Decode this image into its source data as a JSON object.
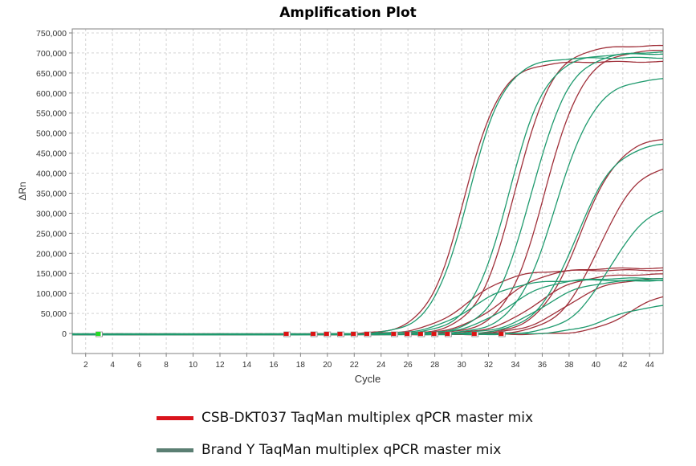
{
  "chart_data": {
    "type": "line",
    "title": "Amplification Plot",
    "xlabel": "Cycle",
    "ylabel": "ΔRn",
    "xlim": [
      1,
      45
    ],
    "ylim": [
      -50000,
      760000
    ],
    "xticks": [
      2,
      4,
      6,
      8,
      10,
      12,
      14,
      16,
      18,
      20,
      22,
      24,
      26,
      28,
      30,
      32,
      34,
      36,
      38,
      40,
      42,
      44
    ],
    "yticks": [
      0,
      50000,
      100000,
      150000,
      200000,
      250000,
      300000,
      350000,
      400000,
      450000,
      500000,
      550000,
      600000,
      650000,
      700000,
      750000
    ],
    "ytick_labels": [
      "0",
      "50,000",
      "100,000",
      "150,000",
      "200,000",
      "250,000",
      "300,000",
      "350,000",
      "400,000",
      "450,000",
      "500,000",
      "550,000",
      "600,000",
      "650,000",
      "700,000",
      "750,000"
    ],
    "grid": true,
    "colors": {
      "red": "#a0303a",
      "green": "#1f9a6e",
      "legend_red": "#d9141c",
      "legend_green": "#5b7f73"
    },
    "legend": [
      {
        "label": "CSB-DKT037 TaqMan multiplex qPCR master mix",
        "color": "#d9141c"
      },
      {
        "label": "Brand Y TaqMan multiplex qPCR master mix",
        "color": "#5b7f73"
      }
    ],
    "series_curves": [
      {
        "group": "red",
        "plateau": 680000,
        "midpoint": 30.2,
        "slope": 1.35
      },
      {
        "group": "red",
        "plateau": 720000,
        "midpoint": 34.0,
        "slope": 1.4
      },
      {
        "group": "red",
        "plateau": 710000,
        "midpoint": 36.2,
        "slope": 1.45
      },
      {
        "group": "red",
        "plateau": 495000,
        "midpoint": 38.8,
        "slope": 1.5
      },
      {
        "group": "red",
        "plateau": 430000,
        "midpoint": 40.2,
        "slope": 1.5
      },
      {
        "group": "red",
        "plateau": 160000,
        "midpoint": 30.5,
        "slope": 1.6
      },
      {
        "group": "red",
        "plateau": 165000,
        "midpoint": 33.0,
        "slope": 1.6
      },
      {
        "group": "red",
        "plateau": 150000,
        "midpoint": 35.5,
        "slope": 1.6
      },
      {
        "group": "red",
        "plateau": 140000,
        "midpoint": 37.8,
        "slope": 1.6
      },
      {
        "group": "red",
        "plateau": 110000,
        "midpoint": 42.5,
        "slope": 1.4
      },
      {
        "group": "green",
        "plateau": 690000,
        "midpoint": 30.5,
        "slope": 1.35
      },
      {
        "group": "green",
        "plateau": 700000,
        "midpoint": 33.5,
        "slope": 1.4
      },
      {
        "group": "green",
        "plateau": 705000,
        "midpoint": 35.2,
        "slope": 1.45
      },
      {
        "group": "green",
        "plateau": 640000,
        "midpoint": 37.0,
        "slope": 1.5
      },
      {
        "group": "green",
        "plateau": 480000,
        "midpoint": 38.5,
        "slope": 1.5
      },
      {
        "group": "green",
        "plateau": 330000,
        "midpoint": 41.0,
        "slope": 1.5
      },
      {
        "group": "green",
        "plateau": 135000,
        "midpoint": 30.8,
        "slope": 1.6
      },
      {
        "group": "green",
        "plateau": 140000,
        "midpoint": 33.5,
        "slope": 1.6
      },
      {
        "group": "green",
        "plateau": 135000,
        "midpoint": 36.0,
        "slope": 1.6
      },
      {
        "group": "green",
        "plateau": 75000,
        "midpoint": 40.8,
        "slope": 1.5
      }
    ],
    "cycle_markers": [
      {
        "cycle": 3,
        "color": "#22dd22"
      },
      {
        "cycle": 17,
        "color": "#dd1111"
      },
      {
        "cycle": 19,
        "color": "#dd1111"
      },
      {
        "cycle": 20,
        "color": "#dd1111"
      },
      {
        "cycle": 21,
        "color": "#dd1111"
      },
      {
        "cycle": 22,
        "color": "#dd1111"
      },
      {
        "cycle": 23,
        "color": "#dd1111"
      },
      {
        "cycle": 25,
        "color": "#dd1111"
      },
      {
        "cycle": 26,
        "color": "#dd1111"
      },
      {
        "cycle": 27,
        "color": "#dd1111"
      },
      {
        "cycle": 28,
        "color": "#dd1111"
      },
      {
        "cycle": 29,
        "color": "#dd1111"
      },
      {
        "cycle": 31,
        "color": "#dd1111"
      },
      {
        "cycle": 33,
        "color": "#dd1111"
      }
    ]
  }
}
